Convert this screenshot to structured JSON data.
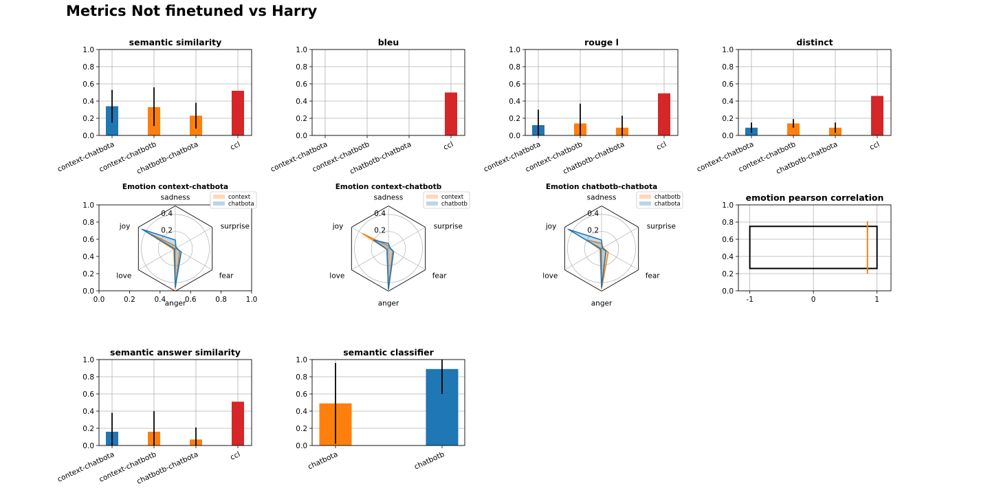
{
  "suptitle": "Metrics Not finetuned vs Harry",
  "colors": {
    "blue": "#1f77b4",
    "orange": "#ff7f0e",
    "red": "#d62728",
    "grid": "#b0b0b0",
    "err": "#000000"
  },
  "chart_data": [
    {
      "type": "bar",
      "title": "semantic similarity",
      "categories": [
        "context-chatbota",
        "context-chatbotb",
        "chatbotb-chatbota",
        "ccl"
      ],
      "values": [
        0.34,
        0.33,
        0.23,
        0.52
      ],
      "errors": [
        [
          0.15,
          0.53
        ],
        [
          0.11,
          0.56
        ],
        [
          0.08,
          0.38
        ],
        null
      ],
      "bar_colors": [
        "blue",
        "orange",
        "orange",
        "red"
      ],
      "ylim": [
        0,
        1.0
      ],
      "yticks": [
        "0.0",
        "0.2",
        "0.4",
        "0.6",
        "0.8",
        "1.0"
      ],
      "grid": true
    },
    {
      "type": "bar",
      "title": "bleu",
      "categories": [
        "context-chatbota",
        "context-chatbotb",
        "chatbotb-chatbota",
        "ccl"
      ],
      "values": [
        0.0,
        0.0,
        0.0,
        0.5
      ],
      "errors": [
        null,
        null,
        null,
        null
      ],
      "bar_colors": [
        "blue",
        "orange",
        "orange",
        "red"
      ],
      "ylim": [
        0,
        1.0
      ],
      "yticks": [
        "0.0",
        "0.2",
        "0.4",
        "0.6",
        "0.8",
        "1.0"
      ],
      "grid": true
    },
    {
      "type": "bar",
      "title": "rouge l",
      "categories": [
        "context-chatbota",
        "context-chatbotb",
        "chatbotb-chatbota",
        "ccl"
      ],
      "values": [
        0.12,
        0.14,
        0.09,
        0.49
      ],
      "errors": [
        [
          0.0,
          0.3
        ],
        [
          0.0,
          0.37
        ],
        [
          0.0,
          0.23
        ],
        null
      ],
      "bar_colors": [
        "blue",
        "orange",
        "orange",
        "red"
      ],
      "ylim": [
        0,
        1.0
      ],
      "yticks": [
        "0.0",
        "0.2",
        "0.4",
        "0.6",
        "0.8",
        "1.0"
      ],
      "grid": true
    },
    {
      "type": "bar",
      "title": "distinct",
      "categories": [
        "context-chatbota",
        "context-chatbotb",
        "chatbotb-chatbota",
        "ccl"
      ],
      "values": [
        0.09,
        0.14,
        0.09,
        0.46
      ],
      "errors": [
        [
          0.03,
          0.15
        ],
        [
          0.09,
          0.19
        ],
        [
          0.03,
          0.15
        ],
        null
      ],
      "bar_colors": [
        "blue",
        "orange",
        "orange",
        "red"
      ],
      "ylim": [
        0,
        1.0
      ],
      "yticks": [
        "0.0",
        "0.2",
        "0.4",
        "0.6",
        "0.8",
        "1.0"
      ],
      "grid": true
    },
    {
      "type": "radar",
      "title": "Emotion context-chatbota",
      "axes": [
        "sadness",
        "surprise",
        "fear",
        "anger",
        "love",
        "joy"
      ],
      "rticks": [
        "0.2",
        "0.4"
      ],
      "rmax": 0.5,
      "series": [
        {
          "name": "context",
          "color": "orange",
          "values": [
            0.03,
            0.02,
            0.06,
            0.47,
            0.02,
            0.38
          ]
        },
        {
          "name": "chatbota",
          "color": "blue",
          "values": [
            0.1,
            0.01,
            0.08,
            0.45,
            0.01,
            0.45
          ]
        }
      ],
      "outer_axis": {
        "ylim": [
          0,
          1.0
        ],
        "yticks": [
          "0.0",
          "0.2",
          "0.4",
          "0.6",
          "0.8",
          "1.0"
        ],
        "xticks": [
          "0.0",
          "0.2",
          "0.4",
          "0.6",
          "0.8",
          "1.0"
        ]
      }
    },
    {
      "type": "radar",
      "title": "Emotion context-chatbotb",
      "axes": [
        "sadness",
        "surprise",
        "fear",
        "anger",
        "love",
        "joy"
      ],
      "rticks": [
        "0.2",
        "0.4"
      ],
      "rmax": 0.5,
      "series": [
        {
          "name": "context",
          "color": "orange",
          "values": [
            0.03,
            0.02,
            0.06,
            0.47,
            0.02,
            0.35
          ]
        },
        {
          "name": "chatbotb",
          "color": "blue",
          "values": [
            0.06,
            0.02,
            0.07,
            0.48,
            0.02,
            0.2
          ]
        }
      ]
    },
    {
      "type": "radar",
      "title": "Emotion chatbotb-chatbota",
      "axes": [
        "sadness",
        "surprise",
        "fear",
        "anger",
        "love",
        "joy"
      ],
      "rticks": [
        "0.2",
        "0.4"
      ],
      "rmax": 0.5,
      "series": [
        {
          "name": "chatbotb",
          "color": "orange",
          "values": [
            0.06,
            0.02,
            0.09,
            0.47,
            0.02,
            0.2
          ]
        },
        {
          "name": "chatbota",
          "color": "blue",
          "values": [
            0.1,
            0.01,
            0.06,
            0.45,
            0.01,
            0.45
          ]
        }
      ]
    },
    {
      "type": "box",
      "title": "emotion pearson correlation",
      "xlim": [
        -1.18,
        1.22
      ],
      "xticks": [
        "-1",
        "0",
        "1"
      ],
      "xtick_values": [
        -1,
        0,
        1
      ],
      "ylim": [
        0,
        1.0
      ],
      "yticks": [
        "0.0",
        "0.2",
        "0.4",
        "0.6",
        "0.8",
        "1.0"
      ],
      "box": {
        "x0": -1,
        "x1": 1,
        "y0": 0.26,
        "y1": 0.75
      },
      "line": {
        "x": 0.85,
        "y0": 0.2,
        "y1": 0.81,
        "color": "orange"
      },
      "grid": true
    },
    {
      "type": "bar",
      "title": "semantic answer similarity",
      "categories": [
        "context-chatbota",
        "context-chatbotb",
        "chatbotb-chatbota",
        "ccl"
      ],
      "values": [
        0.16,
        0.16,
        0.07,
        0.51
      ],
      "errors": [
        [
          0.0,
          0.38
        ],
        [
          0.0,
          0.4
        ],
        [
          0.0,
          0.21
        ],
        null
      ],
      "bar_colors": [
        "blue",
        "orange",
        "orange",
        "red"
      ],
      "ylim": [
        0,
        1.0
      ],
      "yticks": [
        "0.0",
        "0.2",
        "0.4",
        "0.6",
        "0.8",
        "1.0"
      ],
      "grid": true
    },
    {
      "type": "bar",
      "title": "semantic classifier",
      "categories": [
        "chatbota",
        "chatbotb"
      ],
      "values": [
        0.49,
        0.89
      ],
      "errors": [
        [
          0.02,
          0.96
        ],
        [
          0.6,
          1.0
        ]
      ],
      "bar_colors": [
        "orange",
        "blue"
      ],
      "ylim": [
        0,
        1.0
      ],
      "yticks": [
        "0.0",
        "0.2",
        "0.4",
        "0.6",
        "0.8",
        "1.0"
      ],
      "grid": true
    }
  ]
}
